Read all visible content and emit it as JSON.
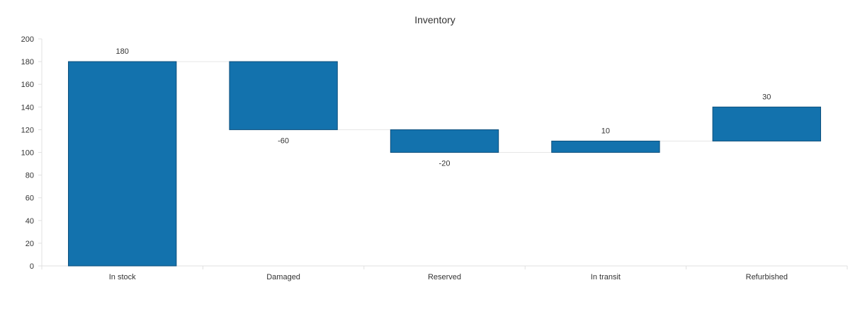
{
  "chart_data": {
    "type": "bar",
    "subtype": "waterfall",
    "title": "Inventory",
    "categories": [
      "In stock",
      "Damaged",
      "Reserved",
      "In transit",
      "Refurbished"
    ],
    "values": [
      180,
      -60,
      -20,
      10,
      30
    ],
    "data_labels": [
      "180",
      "-60",
      "-20",
      "10",
      "30"
    ],
    "ylim": [
      0,
      200
    ],
    "yticks": [
      0,
      20,
      40,
      60,
      80,
      100,
      120,
      140,
      160,
      180,
      200
    ],
    "ytick_labels": [
      "0",
      "20",
      "40",
      "60",
      "80",
      "100",
      "120",
      "140",
      "160",
      "180",
      "200"
    ],
    "xlabel": "",
    "ylabel": "",
    "grid": false,
    "legend": "none",
    "bar_color": "#1372ad"
  }
}
